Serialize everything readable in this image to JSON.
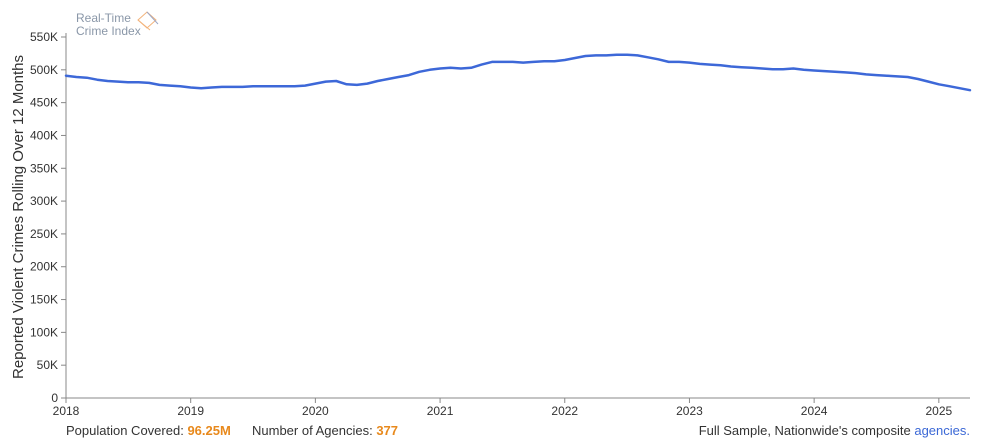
{
  "logo": {
    "line1": "Real-Time",
    "line2": "Crime Index"
  },
  "footer": {
    "population_label": "Population Covered:",
    "population_value": "96.25M",
    "agencies_label": "Number of Agencies:",
    "agencies_value": "377",
    "sample_text": "Full Sample, Nationwide's composite",
    "link_text": "agencies."
  },
  "colors": {
    "line": "#3d68d8",
    "accent": "#e8891c",
    "link": "#3b68d6"
  },
  "chart_data": {
    "type": "line",
    "title": "",
    "xlabel": "",
    "ylabel": "Reported Violent Crimes Rolling Over 12 Months",
    "ylim": [
      0,
      550000
    ],
    "xlim": [
      "2018-01",
      "2025-04"
    ],
    "yticks": [
      0,
      50000,
      100000,
      150000,
      200000,
      250000,
      300000,
      350000,
      400000,
      450000,
      500000,
      550000
    ],
    "ytick_labels": [
      "0",
      "50K",
      "100K",
      "150K",
      "200K",
      "250K",
      "300K",
      "350K",
      "400K",
      "450K",
      "500K",
      "550K"
    ],
    "xtick_labels": [
      "2018",
      "2019",
      "2020",
      "2021",
      "2022",
      "2023",
      "2024",
      "2025"
    ],
    "grid": false,
    "series": [
      {
        "x": [
          "2018-01",
          "2018-02",
          "2018-03",
          "2018-04",
          "2018-05",
          "2018-06",
          "2018-07",
          "2018-08",
          "2018-09",
          "2018-10",
          "2018-11",
          "2018-12",
          "2019-01",
          "2019-02",
          "2019-03",
          "2019-04",
          "2019-05",
          "2019-06",
          "2019-07",
          "2019-08",
          "2019-09",
          "2019-10",
          "2019-11",
          "2019-12",
          "2020-01",
          "2020-02",
          "2020-03",
          "2020-04",
          "2020-05",
          "2020-06",
          "2020-07",
          "2020-08",
          "2020-09",
          "2020-10",
          "2020-11",
          "2020-12",
          "2021-01",
          "2021-02",
          "2021-03",
          "2021-04",
          "2021-05",
          "2021-06",
          "2021-07",
          "2021-08",
          "2021-09",
          "2021-10",
          "2021-11",
          "2021-12",
          "2022-01",
          "2022-02",
          "2022-03",
          "2022-04",
          "2022-05",
          "2022-06",
          "2022-07",
          "2022-08",
          "2022-09",
          "2022-10",
          "2022-11",
          "2022-12",
          "2023-01",
          "2023-02",
          "2023-03",
          "2023-04",
          "2023-05",
          "2023-06",
          "2023-07",
          "2023-08",
          "2023-09",
          "2023-10",
          "2023-11",
          "2023-12",
          "2024-01",
          "2024-02",
          "2024-03",
          "2024-04",
          "2024-05",
          "2024-06",
          "2024-07",
          "2024-08",
          "2024-09",
          "2024-10",
          "2024-11",
          "2024-12",
          "2025-01",
          "2025-02",
          "2025-03",
          "2025-04"
        ],
        "values": [
          491000,
          489000,
          488000,
          485000,
          483000,
          482000,
          481000,
          481000,
          480000,
          477000,
          476000,
          475000,
          473000,
          472000,
          473000,
          474000,
          474000,
          474000,
          475000,
          475000,
          475000,
          475000,
          475000,
          476000,
          479000,
          482000,
          483000,
          478000,
          477000,
          479000,
          483000,
          486000,
          489000,
          492000,
          497000,
          500000,
          502000,
          503000,
          502000,
          503000,
          508000,
          512000,
          512000,
          512000,
          511000,
          512000,
          513000,
          513000,
          515000,
          518000,
          521000,
          522000,
          522000,
          523000,
          523000,
          522000,
          519000,
          516000,
          512000,
          512000,
          511000,
          509000,
          508000,
          507000,
          505000,
          504000,
          503000,
          502000,
          501000,
          501000,
          502000,
          500000,
          499000,
          498000,
          497000,
          496000,
          495000,
          493000,
          492000,
          491000,
          490000,
          489000,
          486000,
          482000,
          478000,
          475000,
          472000,
          469000
        ]
      }
    ]
  }
}
